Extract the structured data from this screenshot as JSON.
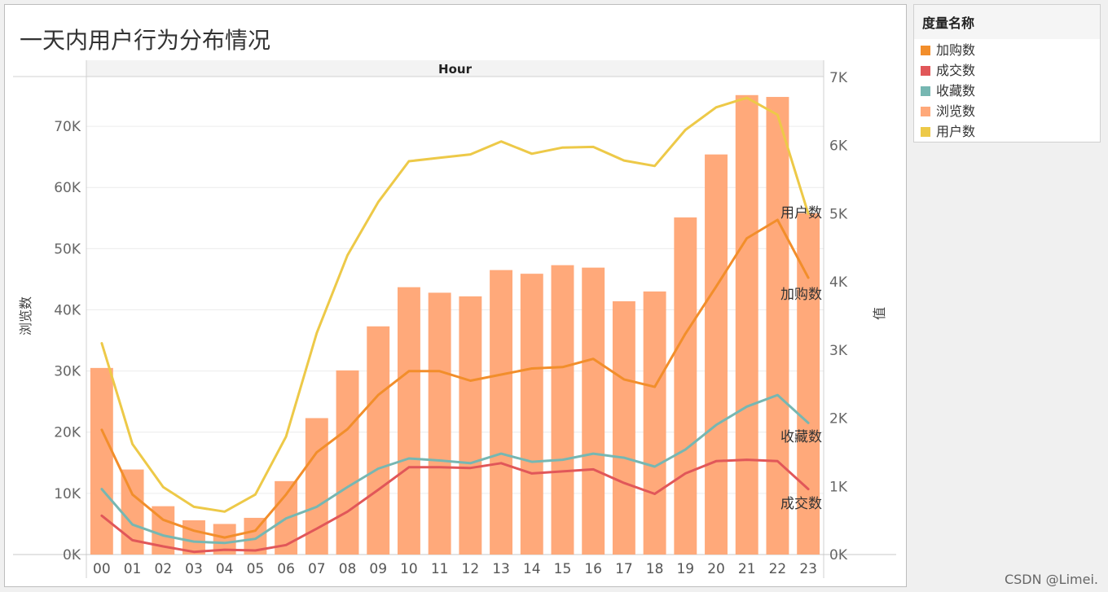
{
  "title": "一天内用户行为分布情况",
  "watermark": "CSDN @Limei.",
  "legend": {
    "title": "度量名称",
    "items": [
      {
        "label": "加购数",
        "color": "#f28e2b"
      },
      {
        "label": "成交数",
        "color": "#e15759"
      },
      {
        "label": "收藏数",
        "color": "#76b7b2"
      },
      {
        "label": "浏览数",
        "color": "#ffa97a"
      },
      {
        "label": "用户数",
        "color": "#edc948"
      }
    ]
  },
  "chart_data": {
    "type": "bar",
    "header": "Hour",
    "categories": [
      "00",
      "01",
      "02",
      "03",
      "04",
      "05",
      "06",
      "07",
      "08",
      "09",
      "10",
      "11",
      "12",
      "13",
      "14",
      "15",
      "16",
      "17",
      "18",
      "19",
      "20",
      "21",
      "22",
      "23"
    ],
    "left_axis": {
      "label": "浏览数",
      "range": [
        0,
        78000
      ],
      "ticks": [
        {
          "v": 0,
          "t": "0K"
        },
        {
          "v": 10000,
          "t": "10K"
        },
        {
          "v": 20000,
          "t": "20K"
        },
        {
          "v": 30000,
          "t": "30K"
        },
        {
          "v": 40000,
          "t": "40K"
        },
        {
          "v": 50000,
          "t": "50K"
        },
        {
          "v": 60000,
          "t": "60K"
        },
        {
          "v": 70000,
          "t": "70K"
        }
      ]
    },
    "right_axis": {
      "label": "值",
      "range": [
        0,
        7000
      ],
      "ticks": [
        {
          "v": 0,
          "t": "0K"
        },
        {
          "v": 1000,
          "t": "1K"
        },
        {
          "v": 2000,
          "t": "2K"
        },
        {
          "v": 3000,
          "t": "3K"
        },
        {
          "v": 4000,
          "t": "4K"
        },
        {
          "v": 5000,
          "t": "5K"
        },
        {
          "v": 6000,
          "t": "6K"
        },
        {
          "v": 7000,
          "t": "7K"
        }
      ]
    },
    "bars": {
      "name": "浏览数",
      "color": "#ffa97a",
      "values": [
        30500,
        13900,
        7900,
        5600,
        5000,
        6000,
        12000,
        22300,
        30100,
        37300,
        43700,
        42800,
        42200,
        46500,
        45900,
        47300,
        46900,
        41400,
        43000,
        55100,
        65400,
        75100,
        74800,
        55800
      ]
    },
    "lines": [
      {
        "name": "用户数",
        "color": "#edc948",
        "label": "用户数",
        "values": [
          3100,
          1620,
          990,
          700,
          630,
          880,
          1730,
          3250,
          4390,
          5170,
          5770,
          5820,
          5870,
          6060,
          5880,
          5970,
          5980,
          5780,
          5700,
          6230,
          6560,
          6700,
          6450,
          5000
        ]
      },
      {
        "name": "加购数",
        "color": "#f28e2b",
        "label": "加购数",
        "values": [
          1830,
          880,
          510,
          350,
          250,
          350,
          880,
          1500,
          1840,
          2340,
          2690,
          2690,
          2550,
          2640,
          2730,
          2750,
          2870,
          2570,
          2460,
          3240,
          3930,
          4640,
          4910,
          4060
        ]
      },
      {
        "name": "收藏数",
        "color": "#76b7b2",
        "label": "收藏数",
        "values": [
          960,
          440,
          280,
          190,
          170,
          230,
          530,
          700,
          990,
          1260,
          1410,
          1380,
          1340,
          1480,
          1360,
          1390,
          1480,
          1420,
          1290,
          1540,
          1900,
          2170,
          2340,
          1930
        ]
      },
      {
        "name": "成交数",
        "color": "#e15759",
        "label": "成交数",
        "values": [
          570,
          210,
          120,
          40,
          70,
          60,
          140,
          380,
          630,
          950,
          1280,
          1280,
          1270,
          1340,
          1190,
          1220,
          1250,
          1050,
          890,
          1190,
          1370,
          1390,
          1370,
          960
        ]
      }
    ]
  }
}
